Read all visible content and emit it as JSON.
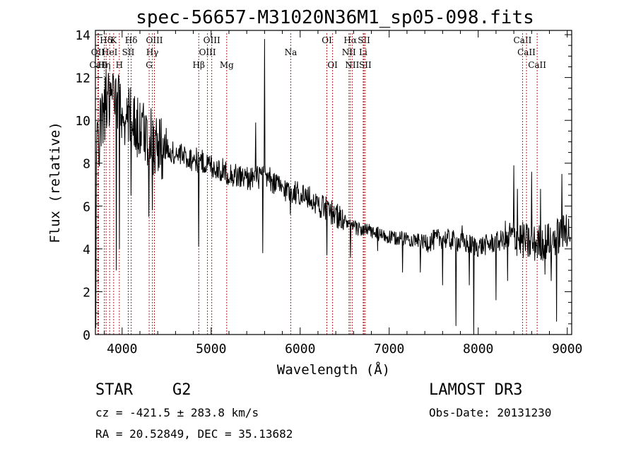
{
  "chart_data": {
    "type": "line",
    "title": "spec-56657-M31020N36M1_sp05-098.fits",
    "xlabel": "Wavelength (Å)",
    "ylabel": "Flux (relative)",
    "xlim": [
      3700,
      9050
    ],
    "ylim": [
      0,
      14.2
    ],
    "xticks": [
      4000,
      5000,
      6000,
      7000,
      8000,
      9000
    ],
    "yticks": [
      0,
      2,
      4,
      6,
      8,
      10,
      12,
      14
    ],
    "grid": false,
    "line_color": "#000000",
    "marker_color": "#b22222",
    "continuum": {
      "x": [
        3700,
        3800,
        3900,
        4000,
        4100,
        4200,
        4400,
        4600,
        4800,
        5000,
        5200,
        5400,
        5600,
        5800,
        6000,
        6200,
        6400,
        6600,
        6800,
        7000,
        7200,
        7400,
        7600,
        7800,
        8000,
        8200,
        8400,
        8600,
        8800,
        9000
      ],
      "y": [
        8.5,
        10.5,
        11.0,
        10.3,
        10.0,
        9.6,
        8.8,
        8.4,
        8.2,
        7.9,
        7.5,
        7.3,
        7.4,
        6.8,
        6.6,
        6.1,
        5.6,
        5.0,
        4.8,
        4.5,
        4.5,
        4.3,
        4.5,
        4.3,
        4.1,
        4.3,
        4.6,
        4.2,
        4.4,
        4.8
      ]
    },
    "features": [
      {
        "x": 3705,
        "y": 0.3
      },
      {
        "x": 3820,
        "y": 12.4
      },
      {
        "x": 3934,
        "y": 3.0
      },
      {
        "x": 3969,
        "y": 4.0
      },
      {
        "x": 4102,
        "y": 6.5
      },
      {
        "x": 4300,
        "y": 5.5
      },
      {
        "x": 4340,
        "y": 5.8
      },
      {
        "x": 4861,
        "y": 4.1
      },
      {
        "x": 5170,
        "y": 7.2
      },
      {
        "x": 5500,
        "y": 9.9
      },
      {
        "x": 5580,
        "y": 3.8
      },
      {
        "x": 5600,
        "y": 13.8
      },
      {
        "x": 5890,
        "y": 5.6
      },
      {
        "x": 6300,
        "y": 3.7
      },
      {
        "x": 6563,
        "y": 3.6
      },
      {
        "x": 6870,
        "y": 3.9
      },
      {
        "x": 7150,
        "y": 2.9
      },
      {
        "x": 7350,
        "y": 2.9
      },
      {
        "x": 7600,
        "y": 2.3
      },
      {
        "x": 7750,
        "y": 0.4
      },
      {
        "x": 7820,
        "y": 5.1
      },
      {
        "x": 7900,
        "y": 2.3
      },
      {
        "x": 7950,
        "y": 0.0
      },
      {
        "x": 8200,
        "y": 1.6
      },
      {
        "x": 8330,
        "y": 2.5
      },
      {
        "x": 8400,
        "y": 7.9
      },
      {
        "x": 8440,
        "y": 6.8
      },
      {
        "x": 8600,
        "y": 7.6
      },
      {
        "x": 8700,
        "y": 6.8
      },
      {
        "x": 8750,
        "y": 2.8
      },
      {
        "x": 8820,
        "y": 2.5
      },
      {
        "x": 8880,
        "y": 0.6
      },
      {
        "x": 8940,
        "y": 7.5
      },
      {
        "x": 8990,
        "y": 5.6
      }
    ],
    "line_markers": [
      {
        "name": "Hδ",
        "x": 3820,
        "row": 0
      },
      {
        "name": "OII",
        "x": 3727,
        "row": 1
      },
      {
        "name": "CaII",
        "x": 3735,
        "row": 2
      },
      {
        "name": "K",
        "x": 3905,
        "row": 0
      },
      {
        "name": "HeI",
        "x": 3860,
        "row": 1
      },
      {
        "name": "Hη",
        "x": 3800,
        "row": 2
      },
      {
        "name": "H",
        "x": 3969,
        "row": 2
      },
      {
        "name": "Hδ",
        "x": 4102,
        "row": 0
      },
      {
        "name": "SII",
        "x": 4069,
        "row": 1
      },
      {
        "name": "OIII",
        "x": 4363,
        "row": 0
      },
      {
        "name": "Hγ",
        "x": 4340,
        "row": 1
      },
      {
        "name": "G",
        "x": 4304,
        "row": 2
      },
      {
        "name": "Hβ",
        "x": 4861,
        "row": 2
      },
      {
        "name": "OIII",
        "x": 5007,
        "row": 0
      },
      {
        "name": "OIII",
        "x": 4959,
        "row": 1
      },
      {
        "name": "Mg",
        "x": 5175,
        "row": 2
      },
      {
        "name": "Na",
        "x": 5894,
        "row": 1
      },
      {
        "name": "OI",
        "x": 6300,
        "row": 0
      },
      {
        "name": "OI",
        "x": 6364,
        "row": 2
      },
      {
        "name": "Hα",
        "x": 6563,
        "row": 0
      },
      {
        "name": "SII",
        "x": 6717,
        "row": 0
      },
      {
        "name": "NII",
        "x": 6548,
        "row": 1
      },
      {
        "name": "Li",
        "x": 6708,
        "row": 1
      },
      {
        "name": "NII",
        "x": 6584,
        "row": 2
      },
      {
        "name": "SII",
        "x": 6731,
        "row": 2
      },
      {
        "name": "CaII",
        "x": 8498,
        "row": 0
      },
      {
        "name": "CaII",
        "x": 8542,
        "row": 1
      },
      {
        "name": "CaII",
        "x": 8662,
        "row": 2
      }
    ]
  },
  "info": {
    "class": "STAR",
    "subclass": "G2",
    "survey": "LAMOST DR3",
    "cz": "cz = -421.5 ± 283.8 km/s",
    "obs_date": "Obs-Date: 20131230",
    "coords": "RA =  20.52849, DEC =  35.13682"
  }
}
